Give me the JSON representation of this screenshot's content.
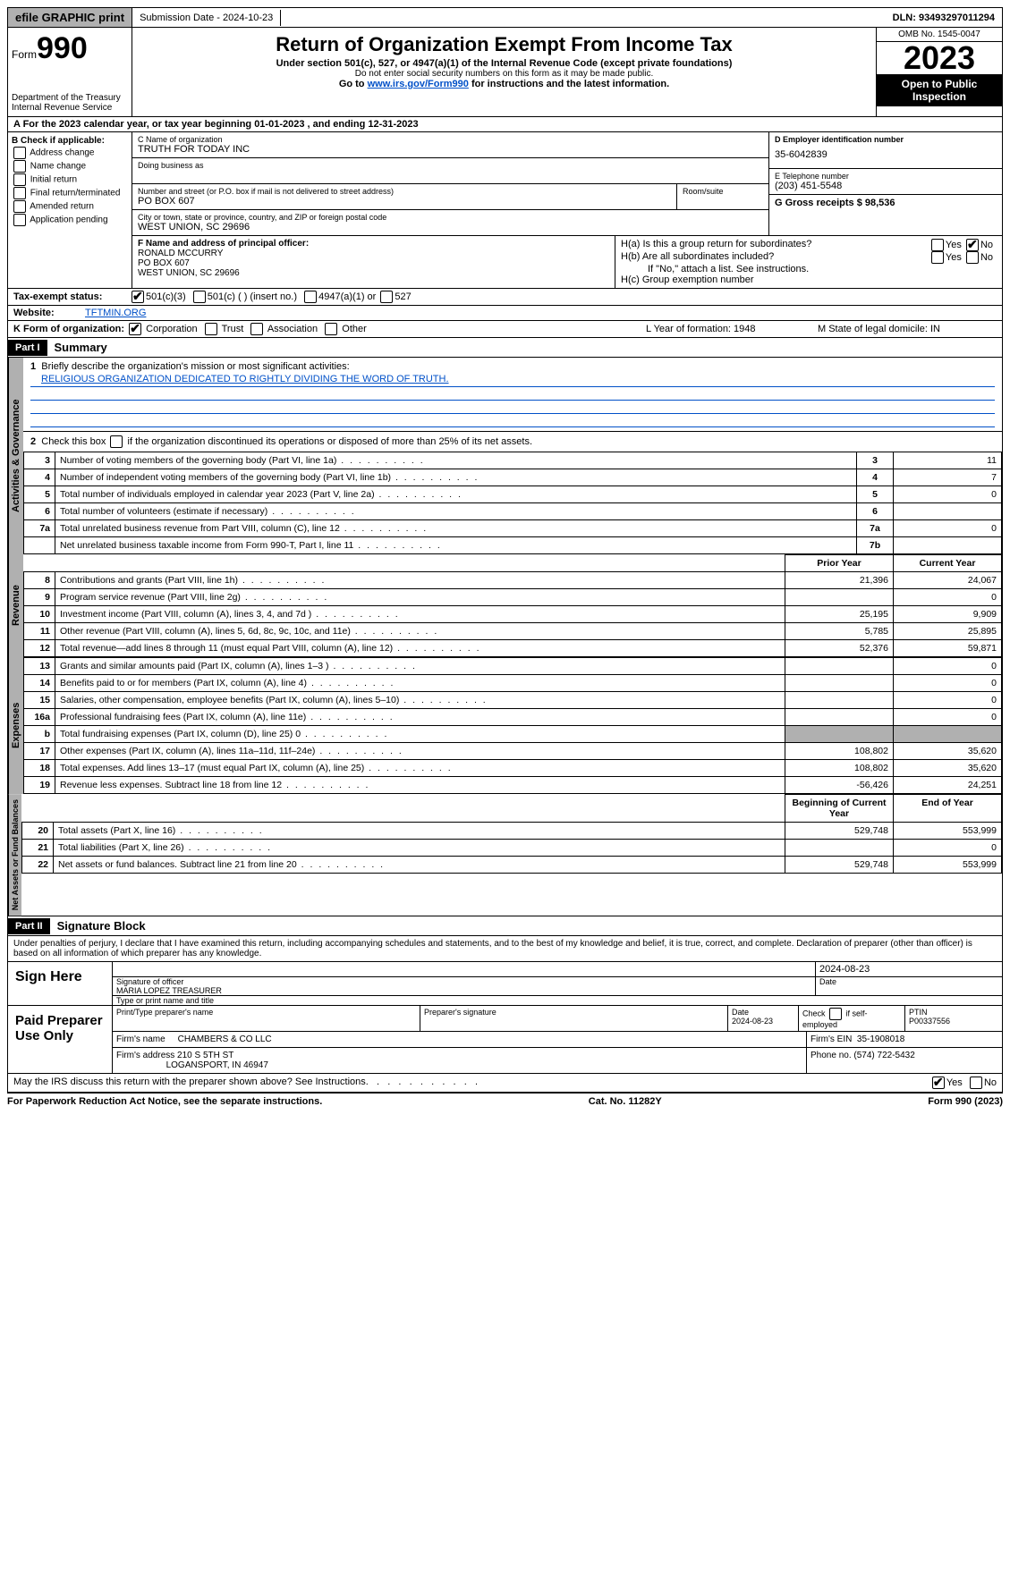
{
  "topbar": {
    "efile": "efile GRAPHIC print",
    "submission": "Submission Date - 2024-10-23",
    "dln": "DLN: 93493297011294"
  },
  "header": {
    "form_prefix": "Form",
    "form_number": "990",
    "dept": "Department of the Treasury Internal Revenue Service",
    "title": "Return of Organization Exempt From Income Tax",
    "sub": "Under section 501(c), 527, or 4947(a)(1) of the Internal Revenue Code (except private foundations)",
    "warn": "Do not enter social security numbers on this form as it may be made public.",
    "goto_pre": "Go to ",
    "goto_link": "www.irs.gov/Form990",
    "goto_post": " for instructions and the latest information.",
    "omb": "OMB No. 1545-0047",
    "year": "2023",
    "open": "Open to Public Inspection"
  },
  "line_a": "A For the 2023 calendar year, or tax year beginning 01-01-2023    , and ending 12-31-2023",
  "box_b": {
    "title": "B Check if applicable:",
    "opts": [
      "Address change",
      "Name change",
      "Initial return",
      "Final return/terminated",
      "Amended return",
      "Application pending"
    ]
  },
  "box_c": {
    "name_label": "C Name of organization",
    "name": "TRUTH FOR TODAY INC",
    "dba_label": "Doing business as",
    "street_label": "Number and street (or P.O. box if mail is not delivered to street address)",
    "room_label": "Room/suite",
    "street": "PO BOX 607",
    "city_label": "City or town, state or province, country, and ZIP or foreign postal code",
    "city": "WEST UNION, SC  29696"
  },
  "box_d": {
    "label": "D Employer identification number",
    "val": "35-6042839"
  },
  "box_e": {
    "label": "E Telephone number",
    "val": "(203) 451-5548"
  },
  "box_g": {
    "label": "G Gross receipts $ 98,536"
  },
  "box_f": {
    "label": "F  Name and address of principal officer:",
    "l1": "RONALD MCCURRY",
    "l2": "PO BOX 607",
    "l3": "WEST UNION, SC  29696"
  },
  "box_h": {
    "a": "H(a)  Is this a group return for subordinates?",
    "b": "H(b)  Are all subordinates included?",
    "b_note": "If \"No,\" attach a list. See instructions.",
    "c": "H(c)  Group exemption number"
  },
  "tax_exempt": {
    "label": "Tax-exempt status:",
    "o1": "501(c)(3)",
    "o2": "501(c) (  ) (insert no.)",
    "o3": "4947(a)(1) or",
    "o4": "527"
  },
  "website": {
    "label": "Website:",
    "val": "TFTMIN.ORG"
  },
  "box_k": {
    "label": "K Form of organization:",
    "opts": [
      "Corporation",
      "Trust",
      "Association",
      "Other"
    ]
  },
  "box_l": "L Year of formation: 1948",
  "box_m": "M State of legal domicile: IN",
  "part1": {
    "num": "Part I",
    "title": "Summary",
    "l1_label": "Briefly describe the organization's mission or most significant activities:",
    "l1_text": "RELIGIOUS ORGANIZATION DEDICATED TO RIGHTLY DIVIDING THE WORD OF TRUTH.",
    "l2": "Check this box      if the organization discontinued its operations or disposed of more than 25% of its net assets.",
    "prior_hdr": "Prior Year",
    "curr_hdr": "Current Year",
    "beg_hdr": "Beginning of Current Year",
    "end_hdr": "End of Year",
    "vtab1": "Activities & Governance",
    "vtab2": "Revenue",
    "vtab3": "Expenses",
    "vtab4": "Net Assets or Fund Balances",
    "rows_gov": [
      {
        "n": "3",
        "d": "Number of voting members of the governing body (Part VI, line 1a)",
        "box": "3",
        "v": "11"
      },
      {
        "n": "4",
        "d": "Number of independent voting members of the governing body (Part VI, line 1b)",
        "box": "4",
        "v": "7"
      },
      {
        "n": "5",
        "d": "Total number of individuals employed in calendar year 2023 (Part V, line 2a)",
        "box": "5",
        "v": "0"
      },
      {
        "n": "6",
        "d": "Total number of volunteers (estimate if necessary)",
        "box": "6",
        "v": ""
      },
      {
        "n": "7a",
        "d": "Total unrelated business revenue from Part VIII, column (C), line 12",
        "box": "7a",
        "v": "0"
      },
      {
        "n": "",
        "d": "Net unrelated business taxable income from Form 990-T, Part I, line 11",
        "box": "7b",
        "v": ""
      }
    ],
    "rows_rev": [
      {
        "n": "8",
        "d": "Contributions and grants (Part VIII, line 1h)",
        "p": "21,396",
        "c": "24,067"
      },
      {
        "n": "9",
        "d": "Program service revenue (Part VIII, line 2g)",
        "p": "",
        "c": "0"
      },
      {
        "n": "10",
        "d": "Investment income (Part VIII, column (A), lines 3, 4, and 7d )",
        "p": "25,195",
        "c": "9,909"
      },
      {
        "n": "11",
        "d": "Other revenue (Part VIII, column (A), lines 5, 6d, 8c, 9c, 10c, and 11e)",
        "p": "5,785",
        "c": "25,895"
      },
      {
        "n": "12",
        "d": "Total revenue—add lines 8 through 11 (must equal Part VIII, column (A), line 12)",
        "p": "52,376",
        "c": "59,871"
      }
    ],
    "rows_exp": [
      {
        "n": "13",
        "d": "Grants and similar amounts paid (Part IX, column (A), lines 1–3 )",
        "p": "",
        "c": "0"
      },
      {
        "n": "14",
        "d": "Benefits paid to or for members (Part IX, column (A), line 4)",
        "p": "",
        "c": "0"
      },
      {
        "n": "15",
        "d": "Salaries, other compensation, employee benefits (Part IX, column (A), lines 5–10)",
        "p": "",
        "c": "0"
      },
      {
        "n": "16a",
        "d": "Professional fundraising fees (Part IX, column (A), line 11e)",
        "p": "",
        "c": "0"
      },
      {
        "n": "b",
        "d": "Total fundraising expenses (Part IX, column (D), line 25) 0",
        "p": "GRAY",
        "c": "GRAY"
      },
      {
        "n": "17",
        "d": "Other expenses (Part IX, column (A), lines 11a–11d, 11f–24e)",
        "p": "108,802",
        "c": "35,620"
      },
      {
        "n": "18",
        "d": "Total expenses. Add lines 13–17 (must equal Part IX, column (A), line 25)",
        "p": "108,802",
        "c": "35,620"
      },
      {
        "n": "19",
        "d": "Revenue less expenses. Subtract line 18 from line 12",
        "p": "-56,426",
        "c": "24,251"
      }
    ],
    "rows_net": [
      {
        "n": "20",
        "d": "Total assets (Part X, line 16)",
        "p": "529,748",
        "c": "553,999"
      },
      {
        "n": "21",
        "d": "Total liabilities (Part X, line 26)",
        "p": "",
        "c": "0"
      },
      {
        "n": "22",
        "d": "Net assets or fund balances. Subtract line 21 from line 20",
        "p": "529,748",
        "c": "553,999"
      }
    ]
  },
  "part2": {
    "num": "Part II",
    "title": "Signature Block",
    "decl": "Under penalties of perjury, I declare that I have examined this return, including accompanying schedules and statements, and to the best of my knowledge and belief, it is true, correct, and complete. Declaration of preparer (other than officer) is based on all information of which preparer has any knowledge."
  },
  "sign": {
    "here": "Sign Here",
    "sig_label": "Signature of officer",
    "officer": "MARIA LOPEZ  TREASURER",
    "type_label": "Type or print name and title",
    "date_label": "Date",
    "date": "2024-08-23"
  },
  "preparer": {
    "label": "Paid Preparer Use Only",
    "name_label": "Print/Type preparer's name",
    "sig_label": "Preparer's signature",
    "date_label": "Date",
    "date": "2024-08-23",
    "self_label": "Check       if self-employed",
    "ptin_label": "PTIN",
    "ptin": "P00337556",
    "firm_name_label": "Firm's name",
    "firm_name": "CHAMBERS & CO LLC",
    "firm_ein_label": "Firm's EIN",
    "firm_ein": "35-1908018",
    "firm_addr_label": "Firm's address",
    "firm_addr1": "210 S 5TH ST",
    "firm_addr2": "LOGANSPORT, IN  46947",
    "phone_label": "Phone no.",
    "phone": "(574) 722-5432"
  },
  "discuss": "May the IRS discuss this return with the preparer shown above? See Instructions.",
  "yes": "Yes",
  "no": "No",
  "footer": {
    "l": "For Paperwork Reduction Act Notice, see the separate instructions.",
    "c": "Cat. No. 11282Y",
    "r": "Form 990 (2023)"
  }
}
